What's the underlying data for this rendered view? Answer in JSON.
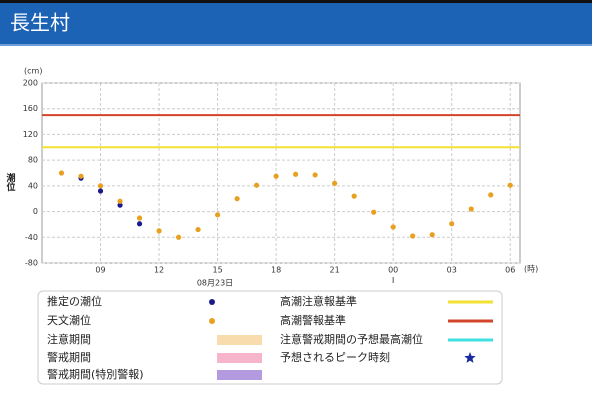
{
  "header": {
    "title": "長生村"
  },
  "chart_data": {
    "type": "scatter",
    "y_label": "潮位",
    "y_unit": "(cm)",
    "x_unit": "(時)",
    "date_label": "08月23日",
    "xlim": [
      6,
      30.5
    ],
    "xticks": [
      {
        "value": 9,
        "label": "09"
      },
      12,
      15,
      18,
      21,
      {
        "value": 24,
        "label": "00"
      },
      {
        "value": 27,
        "label": "03"
      },
      {
        "value": 30,
        "label": "06"
      }
    ],
    "ylim": [
      -80,
      200
    ],
    "yticks": [
      -80,
      -40,
      0,
      40,
      80,
      120,
      160,
      200
    ],
    "grid": true,
    "series": [
      {
        "name": "推定の潮位",
        "color": "#1a1a8c",
        "x": [
          8,
          9,
          10,
          11
        ],
        "values": [
          52,
          32,
          10,
          -19
        ]
      },
      {
        "name": "天文潮位",
        "color": "#e8a020",
        "x": [
          7,
          8,
          9,
          10,
          11,
          12,
          13,
          14,
          15,
          16,
          17,
          18,
          19,
          20,
          21,
          22,
          23,
          24,
          25,
          26,
          27,
          28,
          29,
          30
        ],
        "values": [
          60,
          55,
          40,
          16,
          -10,
          -30,
          -40,
          -28,
          -5,
          20,
          41,
          55,
          58,
          57,
          44,
          24,
          -1,
          -24,
          -38,
          -36,
          -19,
          4,
          26,
          41
        ]
      }
    ],
    "periods": [
      {
        "name": "注意期間",
        "color": "#f9dcae"
      },
      {
        "name": "警戒期間",
        "color": "#f7b5cb"
      },
      {
        "name": "警戒期間(特別警報)",
        "color": "#b49ade"
      }
    ],
    "reference_lines": [
      {
        "name": "高潮注意報基準",
        "value": 100,
        "color": "#f2e033"
      },
      {
        "name": "高潮警報基準",
        "value": 150,
        "color": "#d2452a"
      }
    ],
    "forecast_max_line": {
      "name": "注意警戒期間の予想最高潮位",
      "color": "#3fe0e0"
    },
    "peak_marker": {
      "name": "予想されるピーク時刻",
      "color": "#1a2aa0"
    }
  }
}
